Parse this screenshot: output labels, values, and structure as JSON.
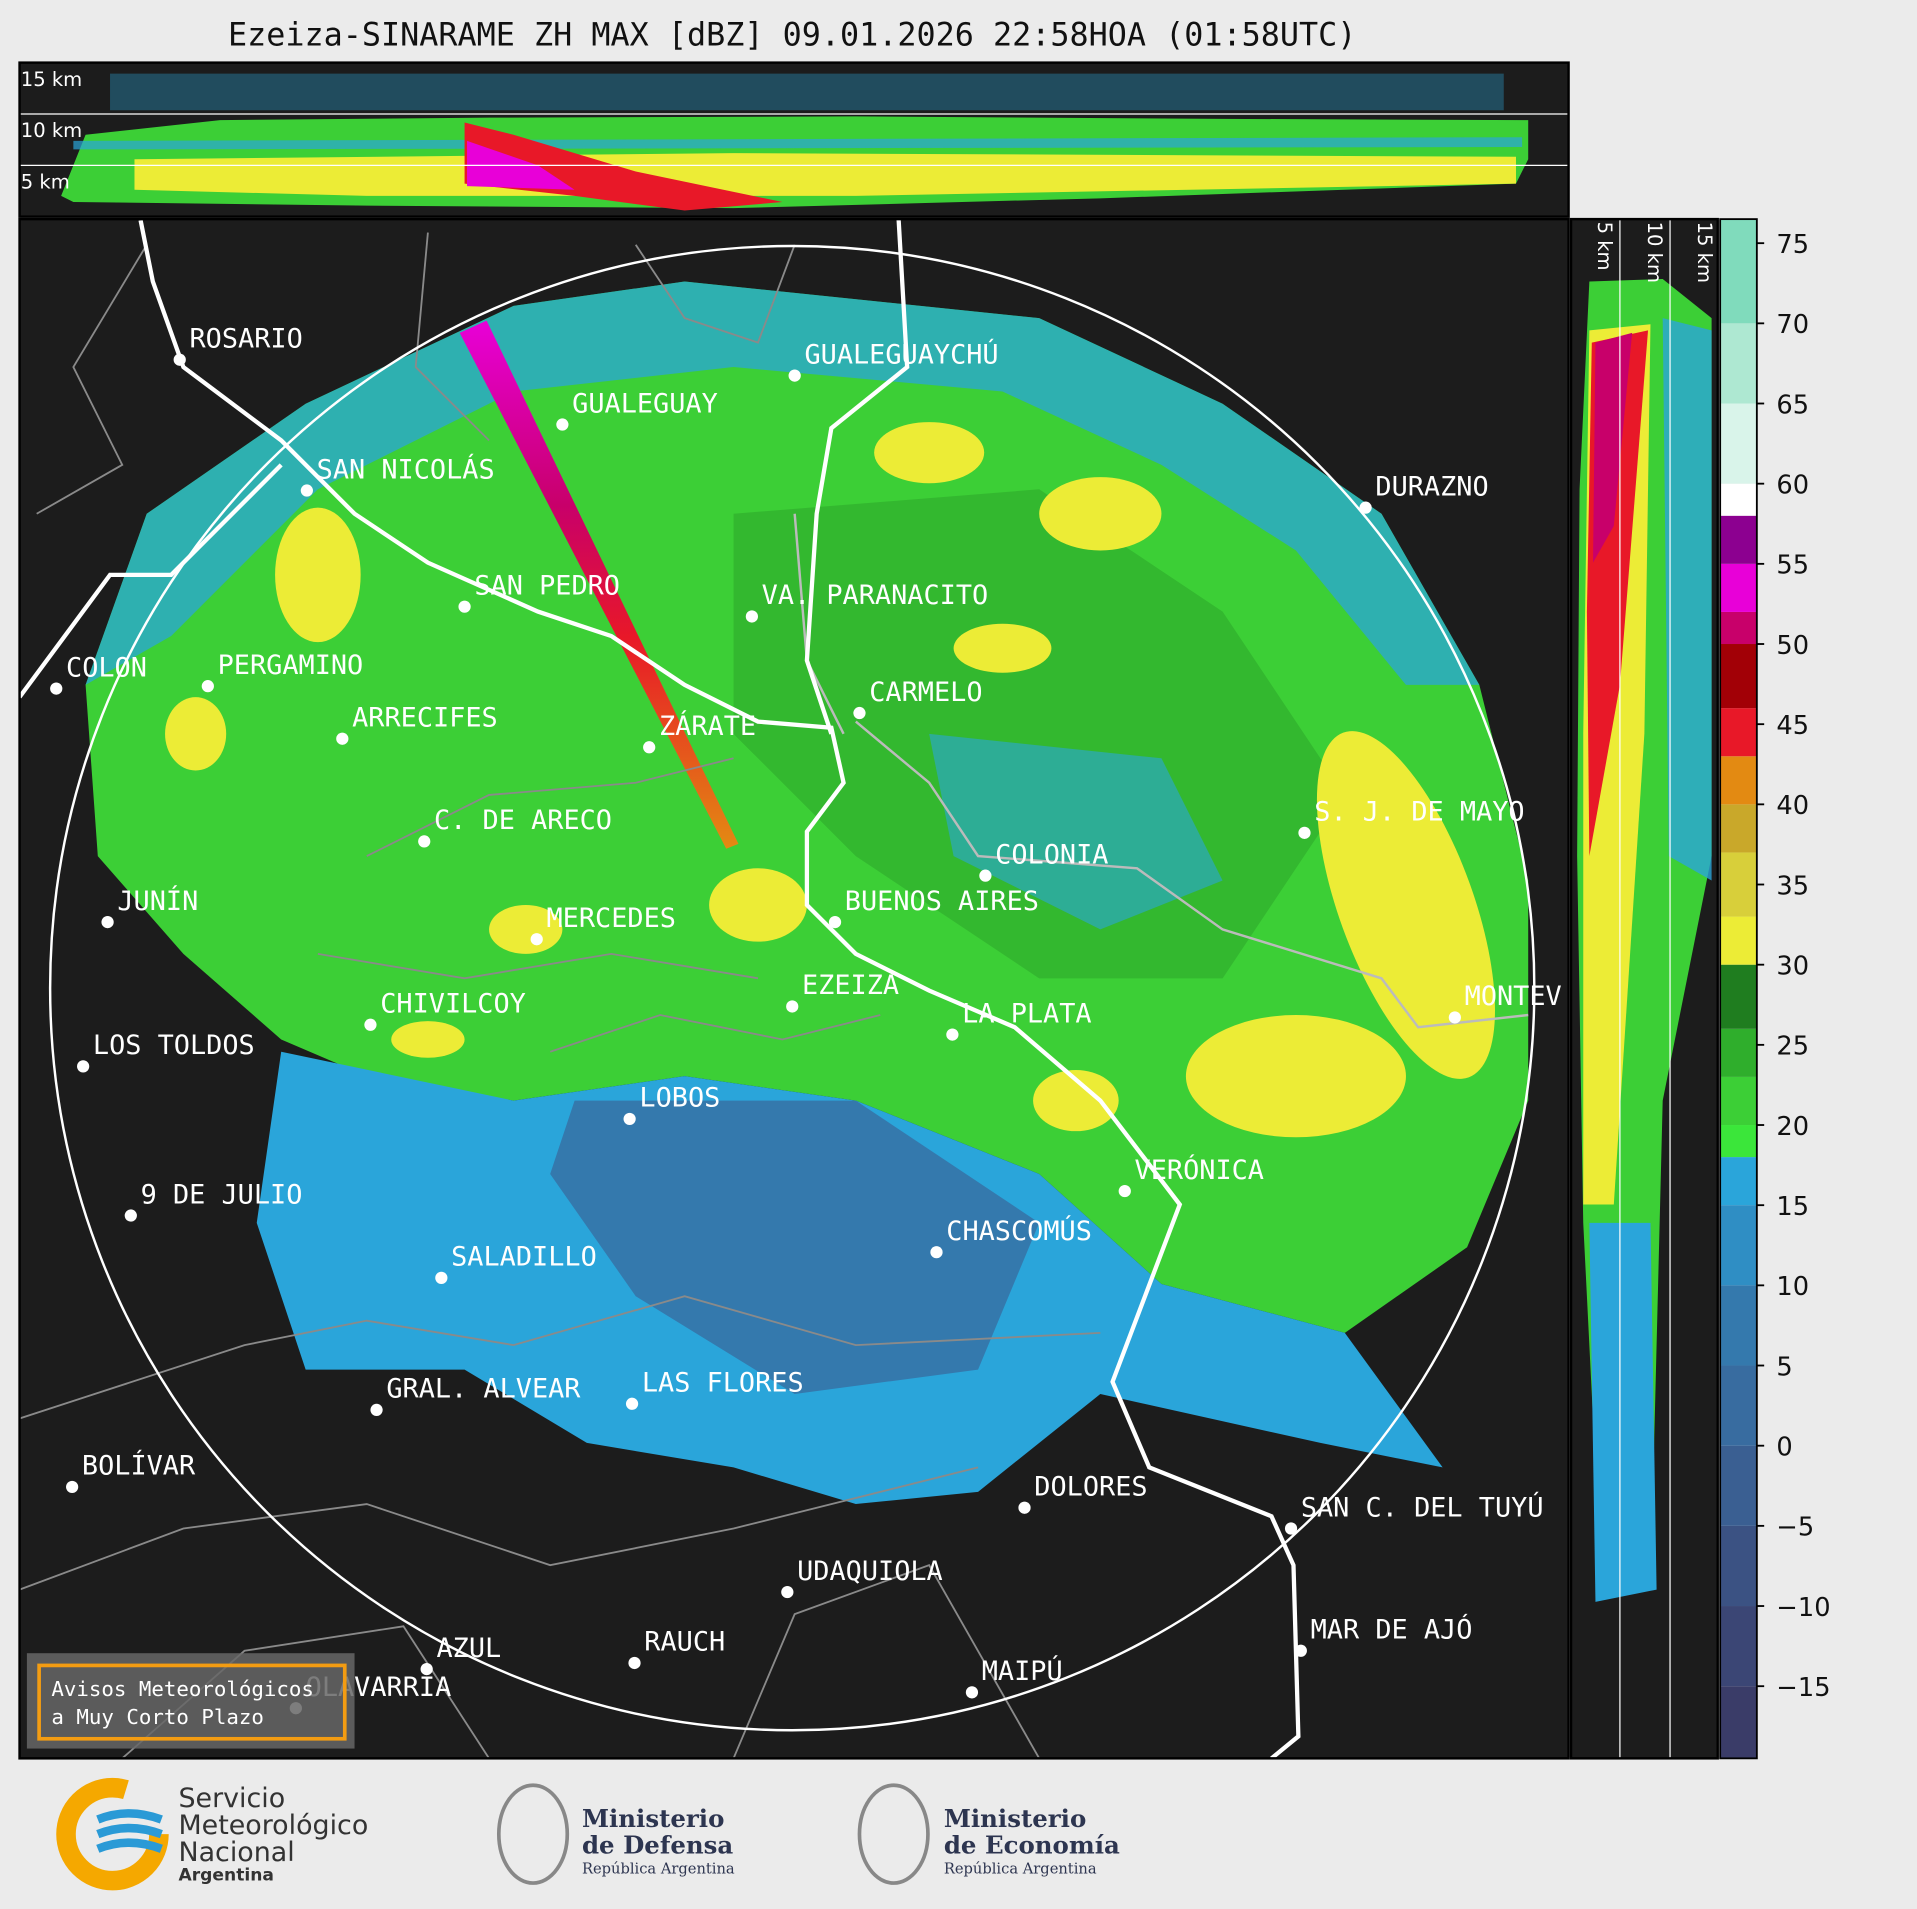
{
  "title": "Ezeiza-SINARAME ZH MAX [dBZ] 09.01.2026 22:58HOA (01:58UTC)",
  "top_panel": {
    "height_labels": [
      "15 km",
      "10 km",
      "5 km"
    ]
  },
  "side_panel": {
    "height_labels": [
      "5 km",
      "10 km",
      "15 km"
    ]
  },
  "cities": [
    {
      "name": "ROSARIO"
    },
    {
      "name": "GUALEGUAYCHÚ"
    },
    {
      "name": "GUALEGUAY"
    },
    {
      "name": "SAN NICOLÁS"
    },
    {
      "name": "DURAZNO"
    },
    {
      "name": "SAN PEDRO"
    },
    {
      "name": "VA. PARANACITO"
    },
    {
      "name": "COLON"
    },
    {
      "name": "PERGAMINO"
    },
    {
      "name": "CARMELO"
    },
    {
      "name": "ARRECIFES"
    },
    {
      "name": "ZÁRATE"
    },
    {
      "name": "S. J. DE MAYO"
    },
    {
      "name": "C. DE ARECO"
    },
    {
      "name": "COLONIA"
    },
    {
      "name": "BUENOS AIRES"
    },
    {
      "name": "JUNÍN"
    },
    {
      "name": "MERCEDES"
    },
    {
      "name": "MONTEV"
    },
    {
      "name": "EZEIZA"
    },
    {
      "name": "LA PLATA"
    },
    {
      "name": "CHIVILCOY"
    },
    {
      "name": "LOS TOLDOS"
    },
    {
      "name": "LOBOS"
    },
    {
      "name": "VERÓNICA"
    },
    {
      "name": "9 DE JULIO"
    },
    {
      "name": "CHASCOMÚS"
    },
    {
      "name": "SALADILLO"
    },
    {
      "name": "GRAL. ALVEAR"
    },
    {
      "name": "LAS FLORES"
    },
    {
      "name": "BOLÍVAR"
    },
    {
      "name": "DOLORES"
    },
    {
      "name": "SAN C. DEL TUYÚ"
    },
    {
      "name": "UDAQUIOLA"
    },
    {
      "name": "MAR DE AJÓ"
    },
    {
      "name": "RAUCH"
    },
    {
      "name": "AZUL"
    },
    {
      "name": "MAIPÚ"
    },
    {
      "name": "OLAVARRÍA"
    }
  ],
  "colorbar": {
    "range": [
      -19.5,
      76.5
    ],
    "ticks": [
      75,
      70,
      65,
      60,
      55,
      50,
      45,
      40,
      35,
      30,
      25,
      20,
      15,
      10,
      5,
      0,
      {
        "value": -5,
        "label": "−5"
      },
      {
        "value": -10,
        "label": "−10"
      },
      {
        "value": -15,
        "label": "−15"
      }
    ],
    "bands": [
      {
        "from": -19.5,
        "to": -15,
        "color": "#3a3c68"
      },
      {
        "from": -15,
        "to": -10,
        "color": "#3b4675"
      },
      {
        "from": -10,
        "to": -5,
        "color": "#3b5283"
      },
      {
        "from": -5,
        "to": 0,
        "color": "#3a5f92"
      },
      {
        "from": 0,
        "to": 5,
        "color": "#386ca0"
      },
      {
        "from": 5,
        "to": 10,
        "color": "#3479ad"
      },
      {
        "from": 10,
        "to": 15,
        "color": "#2f8ec4"
      },
      {
        "from": 15,
        "to": 18,
        "color": "#2aa5da"
      },
      {
        "from": 18,
        "to": 20,
        "color": "#3be63a"
      },
      {
        "from": 20,
        "to": 23,
        "color": "#3ccf36"
      },
      {
        "from": 23,
        "to": 26,
        "color": "#2fae2c"
      },
      {
        "from": 26,
        "to": 30,
        "color": "#1f7d1f"
      },
      {
        "from": 30,
        "to": 33,
        "color": "#ecec36"
      },
      {
        "from": 33,
        "to": 37,
        "color": "#d8cf3a"
      },
      {
        "from": 37,
        "to": 40,
        "color": "#c9a82a"
      },
      {
        "from": 40,
        "to": 43,
        "color": "#e38a12"
      },
      {
        "from": 43,
        "to": 46,
        "color": "#e81828"
      },
      {
        "from": 46,
        "to": 50,
        "color": "#a20006"
      },
      {
        "from": 50,
        "to": 52,
        "color": "#c8006a"
      },
      {
        "from": 52,
        "to": 55,
        "color": "#e800d8"
      },
      {
        "from": 55,
        "to": 58,
        "color": "#8c0090"
      },
      {
        "from": 58,
        "to": 60,
        "color": "#ffffff"
      },
      {
        "from": 60,
        "to": 65,
        "color": "#d9f4ea"
      },
      {
        "from": 65,
        "to": 70,
        "color": "#aee8d2"
      },
      {
        "from": 70,
        "to": 76.5,
        "color": "#80dbbc"
      }
    ]
  },
  "warning_box": {
    "lines": [
      "Avisos Meteorológicos",
      "a Muy Corto Plazo"
    ]
  },
  "footer": {
    "smn": [
      "Servicio",
      "Meteorológico",
      "Nacional",
      "Argentina"
    ],
    "defensa": [
      "Ministerio",
      "de Defensa",
      "República Argentina"
    ],
    "economia": [
      "Ministerio",
      "de Economía",
      "República Argentina"
    ]
  }
}
